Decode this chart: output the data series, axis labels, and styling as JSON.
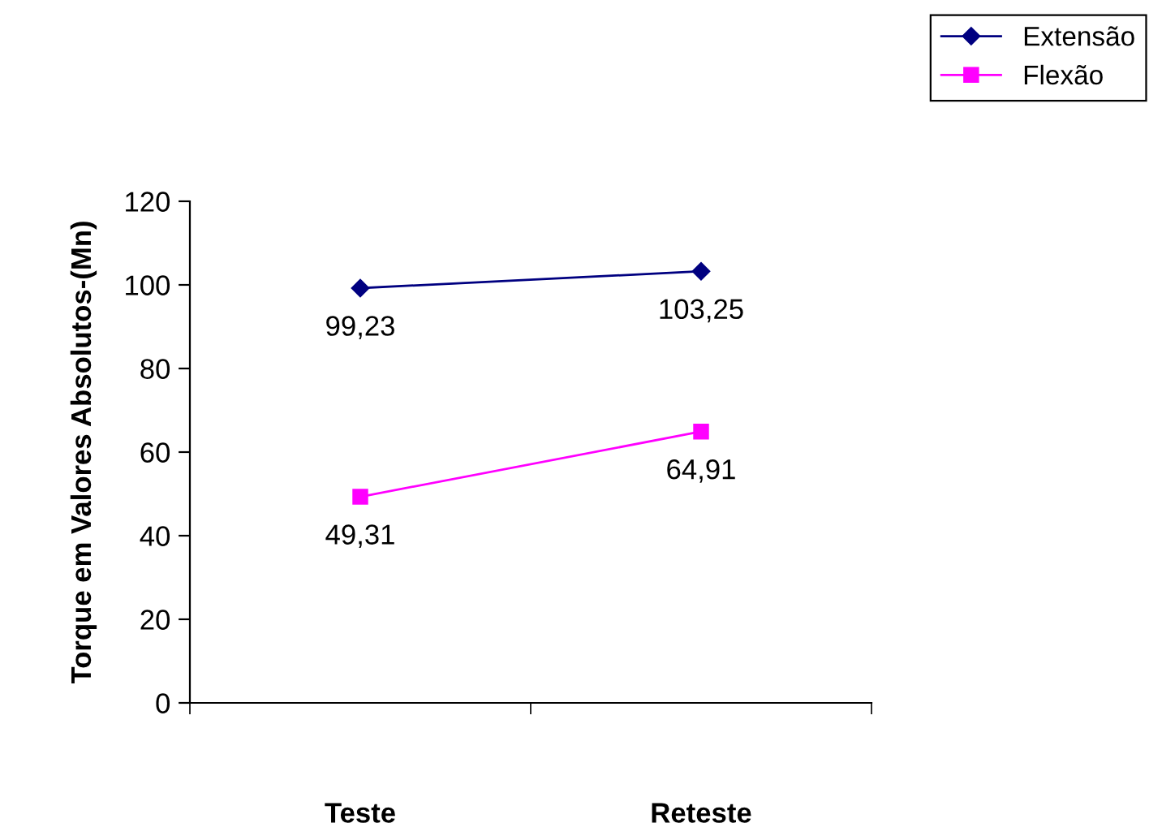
{
  "chart_data": {
    "type": "line",
    "ylabel": "Torque em Valores Absolutos-(Mn)",
    "categories": [
      "Teste",
      "Reteste"
    ],
    "series": [
      {
        "name": "Extensão",
        "color": "#000080",
        "marker": "diamond",
        "values": [
          99.23,
          103.25
        ],
        "value_labels": [
          "99,23",
          "103,25"
        ]
      },
      {
        "name": "Flexão",
        "color": "#ff00ff",
        "marker": "square",
        "values": [
          49.31,
          64.91
        ],
        "value_labels": [
          "49,31",
          "64,91"
        ]
      }
    ],
    "ylim": [
      0,
      120
    ],
    "yticks": [
      0,
      20,
      40,
      60,
      80,
      100,
      120
    ],
    "grid": false,
    "legend": "top right",
    "line_style": "solid"
  }
}
